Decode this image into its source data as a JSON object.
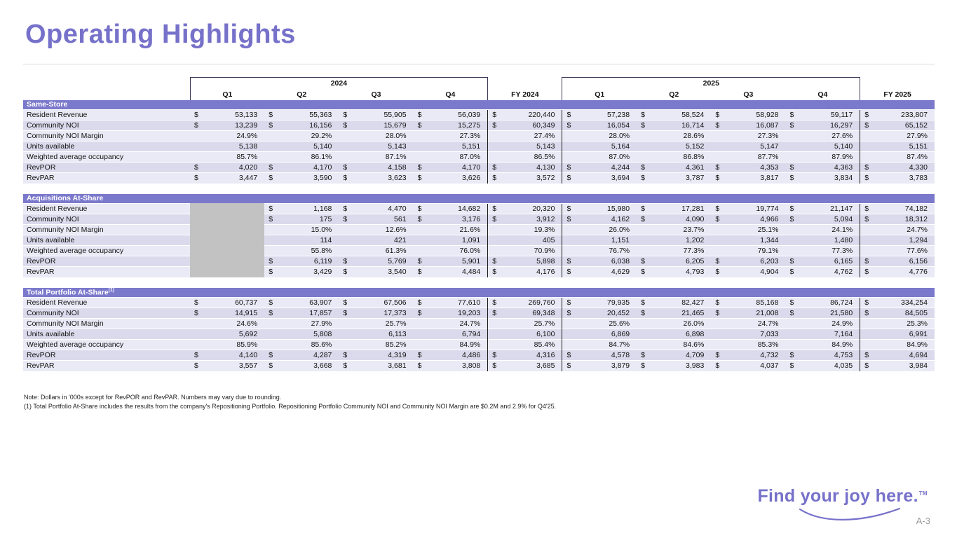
{
  "slide": {
    "title": "Operating Highlights",
    "page_number": "A-3",
    "logo_text": "Find your joy here.",
    "logo_tm": "TM",
    "accent_color": "#7671C9",
    "band_color": "#7B79CB"
  },
  "notes": [
    "Note: Dollars in '000s except for RevPOR and RevPAR.  Numbers may vary due to rounding.",
    "(1) Total Portfolio At-Share includes the results from the company's Repositioning Portfolio.  Repositioning Portfolio Community NOI and Community NOI Margin are $0.2M and 2.9% for Q4'25."
  ],
  "table": {
    "currency": "$",
    "year_groups": [
      "2024",
      "2025"
    ],
    "columns": [
      "Q1",
      "Q2",
      "Q3",
      "Q4",
      "FY 2024",
      "Q1",
      "Q2",
      "Q3",
      "Q4",
      "FY 2025"
    ],
    "sections": [
      {
        "name": "Same-Store",
        "rows": [
          {
            "label": "Resident Revenue",
            "dollar": true,
            "values": [
              "53,133",
              "55,363",
              "55,905",
              "56,039",
              "220,440",
              "57,238",
              "58,524",
              "58,928",
              "59,117",
              "233,807"
            ]
          },
          {
            "label": "Community NOI",
            "dollar": true,
            "values": [
              "13,239",
              "16,156",
              "15,679",
              "15,275",
              "60,349",
              "16,054",
              "16,714",
              "16,087",
              "16,297",
              "65,152"
            ]
          },
          {
            "label": "Community NOI Margin",
            "dollar": false,
            "values": [
              "24.9%",
              "29.2%",
              "28.0%",
              "27.3%",
              "27.4%",
              "28.0%",
              "28.6%",
              "27.3%",
              "27.6%",
              "27.9%"
            ]
          },
          {
            "label": "Units available",
            "dollar": false,
            "values": [
              "5,138",
              "5,140",
              "5,143",
              "5,151",
              "5,143",
              "5,164",
              "5,152",
              "5,147",
              "5,140",
              "5,151"
            ]
          },
          {
            "label": "Weighted average occupancy",
            "dollar": false,
            "values": [
              "85.7%",
              "86.1%",
              "87.1%",
              "87.0%",
              "86.5%",
              "87.0%",
              "86.8%",
              "87.7%",
              "87.9%",
              "87.4%"
            ]
          },
          {
            "label": "RevPOR",
            "dollar": true,
            "values": [
              "4,020",
              "4,170",
              "4,158",
              "4,170",
              "4,130",
              "4,244",
              "4,361",
              "4,353",
              "4,363",
              "4,330"
            ]
          },
          {
            "label": "RevPAR",
            "dollar": true,
            "values": [
              "3,447",
              "3,590",
              "3,623",
              "3,626",
              "3,572",
              "3,694",
              "3,787",
              "3,817",
              "3,834",
              "3,783"
            ]
          }
        ]
      },
      {
        "name": "Acquisitions At-Share",
        "rows": [
          {
            "label": "Resident Revenue",
            "dollar": true,
            "values": [
              null,
              "1,168",
              "4,470",
              "14,682",
              "20,320",
              "15,980",
              "17,281",
              "19,774",
              "21,147",
              "74,182"
            ]
          },
          {
            "label": "Community NOI",
            "dollar": true,
            "values": [
              null,
              "175",
              "561",
              "3,176",
              "3,912",
              "4,162",
              "4,090",
              "4,966",
              "5,094",
              "18,312"
            ]
          },
          {
            "label": "Community NOI Margin",
            "dollar": false,
            "values": [
              null,
              "15.0%",
              "12.6%",
              "21.6%",
              "19.3%",
              "26.0%",
              "23.7%",
              "25.1%",
              "24.1%",
              "24.7%"
            ]
          },
          {
            "label": "Units available",
            "dollar": false,
            "values": [
              null,
              "114",
              "421",
              "1,091",
              "405",
              "1,151",
              "1,202",
              "1,344",
              "1,480",
              "1,294"
            ]
          },
          {
            "label": "Weighted average occupancy",
            "dollar": false,
            "values": [
              null,
              "55.8%",
              "61.3%",
              "76.0%",
              "70.9%",
              "76.7%",
              "77.3%",
              "79.1%",
              "77.3%",
              "77.6%"
            ]
          },
          {
            "label": "RevPOR",
            "dollar": true,
            "values": [
              null,
              "6,119",
              "5,769",
              "5,901",
              "5,898",
              "6,038",
              "6,205",
              "6,203",
              "6,165",
              "6,156"
            ]
          },
          {
            "label": "RevPAR",
            "dollar": true,
            "values": [
              null,
              "3,429",
              "3,540",
              "4,484",
              "4,176",
              "4,629",
              "4,793",
              "4,904",
              "4,762",
              "4,776"
            ]
          }
        ]
      },
      {
        "name": "Total Portfolio At-Share",
        "sup": "(1)",
        "rows": [
          {
            "label": "Resident Revenue",
            "dollar": true,
            "values": [
              "60,737",
              "63,907",
              "67,506",
              "77,610",
              "269,760",
              "79,935",
              "82,427",
              "85,168",
              "86,724",
              "334,254"
            ]
          },
          {
            "label": "Community NOI",
            "dollar": true,
            "values": [
              "14,915",
              "17,857",
              "17,373",
              "19,203",
              "69,348",
              "20,452",
              "21,465",
              "21,008",
              "21,580",
              "84,505"
            ]
          },
          {
            "label": "Community NOI Margin",
            "dollar": false,
            "values": [
              "24.6%",
              "27.9%",
              "25.7%",
              "24.7%",
              "25.7%",
              "25.6%",
              "26.0%",
              "24.7%",
              "24.9%",
              "25.3%"
            ]
          },
          {
            "label": "Units available",
            "dollar": false,
            "values": [
              "5,692",
              "5,808",
              "6,113",
              "6,794",
              "6,100",
              "6,869",
              "6,898",
              "7,033",
              "7,164",
              "6,991"
            ]
          },
          {
            "label": "Weighted average occupancy",
            "dollar": false,
            "values": [
              "85.9%",
              "85.6%",
              "85.2%",
              "84.9%",
              "85.4%",
              "84.7%",
              "84.6%",
              "85.3%",
              "84.9%",
              "84.9%"
            ]
          },
          {
            "label": "RevPOR",
            "dollar": true,
            "values": [
              "4,140",
              "4,287",
              "4,319",
              "4,486",
              "4,316",
              "4,578",
              "4,709",
              "4,732",
              "4,753",
              "4,694"
            ]
          },
          {
            "label": "RevPAR",
            "dollar": true,
            "values": [
              "3,557",
              "3,668",
              "3,681",
              "3,808",
              "3,685",
              "3,879",
              "3,983",
              "4,037",
              "4,035",
              "3,984"
            ]
          }
        ]
      }
    ]
  }
}
